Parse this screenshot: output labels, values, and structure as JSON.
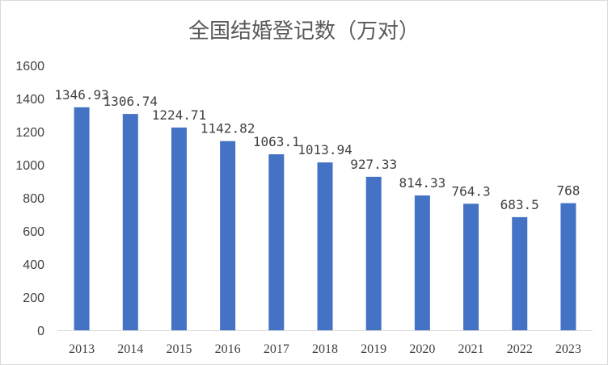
{
  "chart_data": {
    "type": "bar",
    "title": "全国结婚登记数（万对）",
    "categories": [
      "2013",
      "2014",
      "2015",
      "2016",
      "2017",
      "2018",
      "2019",
      "2020",
      "2021",
      "2022",
      "2023"
    ],
    "values": [
      1346.93,
      1306.74,
      1224.71,
      1142.82,
      1063.1,
      1013.94,
      927.33,
      814.33,
      764.3,
      683.5,
      768
    ],
    "data_labels": [
      "1346.93",
      "1306.74",
      "1224.71",
      "1142.82",
      "1063.1",
      "1013.94",
      "927.33",
      "814.33",
      "764.3",
      "683.5",
      "768"
    ],
    "yticks": [
      "0",
      "200",
      "400",
      "600",
      "800",
      "1000",
      "1200",
      "1400",
      "1600"
    ],
    "ylim": [
      0,
      1600
    ],
    "grid": false,
    "legend": "none",
    "bar_color": "#4472C4",
    "text_color": "#404040",
    "axis_color": "#d9d9d9"
  }
}
